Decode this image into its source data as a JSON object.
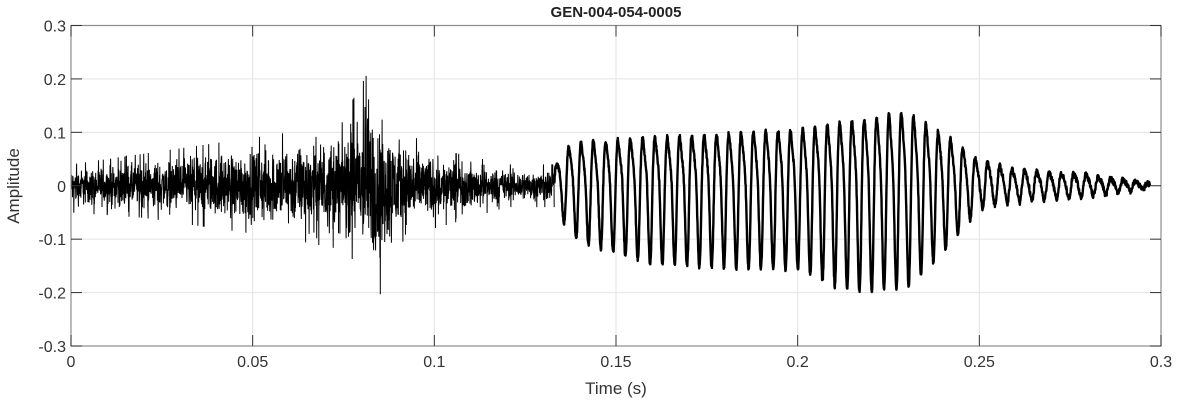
{
  "chart_data": {
    "type": "line",
    "title": "GEN-004-054-0005",
    "xlabel": "Time (s)",
    "ylabel": "Amplitude",
    "xlim": [
      0,
      0.3
    ],
    "ylim": [
      -0.3,
      0.3
    ],
    "xticks": [
      "0",
      "0.05",
      "0.1",
      "0.15",
      "0.2",
      "0.25",
      "0.3"
    ],
    "yticks": [
      "-0.3",
      "-0.2",
      "-0.1",
      "0",
      "0.1",
      "0.2",
      "0.3"
    ],
    "grid": true,
    "line_color": "#000000",
    "signal_end_time": 0.297,
    "envelope": {
      "t": [
        0,
        0.02,
        0.04,
        0.06,
        0.075,
        0.082,
        0.085,
        0.09,
        0.1,
        0.12,
        0.133,
        0.135,
        0.14,
        0.16,
        0.2,
        0.215,
        0.23,
        0.24,
        0.25,
        0.26,
        0.28,
        0.297
      ],
      "upper": [
        0.04,
        0.06,
        0.08,
        0.1,
        0.13,
        0.215,
        0.15,
        0.12,
        0.07,
        0.04,
        0.04,
        0.08,
        0.1,
        0.11,
        0.13,
        0.15,
        0.17,
        0.12,
        0.06,
        0.035,
        0.025,
        0.005
      ],
      "lower": [
        -0.05,
        -0.06,
        -0.08,
        -0.1,
        -0.12,
        -0.17,
        -0.205,
        -0.12,
        -0.08,
        -0.04,
        -0.04,
        -0.06,
        -0.1,
        -0.14,
        -0.15,
        -0.19,
        -0.18,
        -0.12,
        -0.04,
        -0.03,
        -0.02,
        -0.005
      ]
    },
    "segments": [
      {
        "type": "noise",
        "t_range": [
          0,
          0.133
        ]
      },
      {
        "type": "oscillation",
        "t_range": [
          0.133,
          0.297
        ]
      }
    ]
  }
}
